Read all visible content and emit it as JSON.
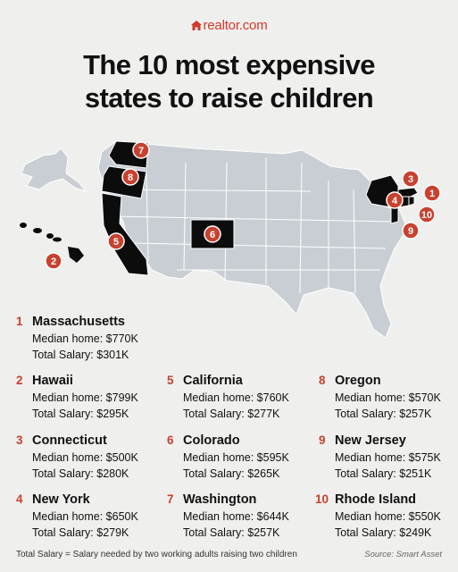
{
  "brand": "realtor.com",
  "title_line1": "The 10 most expensive",
  "title_line2": "states to raise children",
  "states": [
    {
      "rank": "1",
      "name": "Massachusetts",
      "home": "Median home: $770K",
      "salary": "Total Salary: $301K"
    },
    {
      "rank": "2",
      "name": "Hawaii",
      "home": "Median home: $799K",
      "salary": "Total Salary: $295K"
    },
    {
      "rank": "3",
      "name": "Connecticut",
      "home": "Median home: $500K",
      "salary": "Total Salary: $280K"
    },
    {
      "rank": "4",
      "name": "New York",
      "home": "Median home: $650K",
      "salary": "Total Salary: $279K"
    },
    {
      "rank": "5",
      "name": "California",
      "home": "Median home: $760K",
      "salary": "Total Salary: $277K"
    },
    {
      "rank": "6",
      "name": "Colorado",
      "home": "Median home: $595K",
      "salary": "Total Salary: $265K"
    },
    {
      "rank": "7",
      "name": "Washington",
      "home": "Median home: $644K",
      "salary": "Total Salary: $257K"
    },
    {
      "rank": "8",
      "name": "Oregon",
      "home": "Median home: $570K",
      "salary": "Total Salary: $257K"
    },
    {
      "rank": "9",
      "name": "New Jersey",
      "home": "Median home: $575K",
      "salary": "Total Salary: $251K"
    },
    {
      "rank": "10",
      "name": "Rhode Island",
      "home": "Median home: $550K",
      "salary": "Total Salary: $249K"
    }
  ],
  "map_badges": [
    "7",
    "8",
    "5",
    "2",
    "6",
    "3",
    "4",
    "1",
    "10",
    "9"
  ],
  "footnote": "Total Salary = Salary needed by two working adults raising two children",
  "source": "Source: Smart Asset",
  "colors": {
    "accent": "#c8412f",
    "highlight_state": "#0c0c0c",
    "other_state": "#c9ced4",
    "background": "#efefed"
  }
}
